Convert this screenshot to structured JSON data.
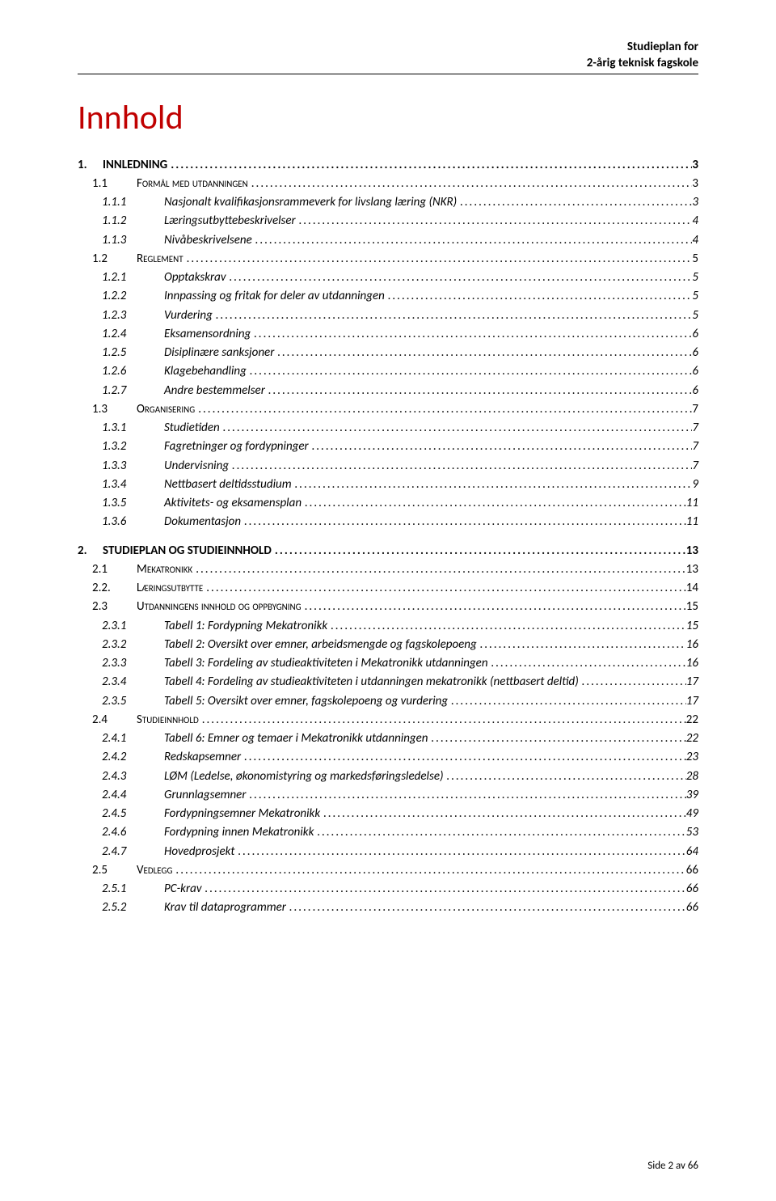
{
  "header": {
    "line1": "Studieplan for",
    "line2": "2-årig teknisk fagskole"
  },
  "title": "Innhold",
  "footer": "Side 2 av 66",
  "colors": {
    "title": "#c00000",
    "text": "#000000",
    "background": "#ffffff"
  },
  "toc": [
    {
      "level": 1,
      "num": "1.",
      "label": "INNLEDNING",
      "page": "3"
    },
    {
      "level": 2,
      "num": "1.1",
      "label": "Formål med utdanningen",
      "page": "3",
      "smallcaps": true
    },
    {
      "level": 3,
      "num": "1.1.1",
      "label": "Nasjonalt kvalifikasjonsrammeverk for livslang læring (NKR)",
      "page": "3"
    },
    {
      "level": 3,
      "num": "1.1.2",
      "label": "Læringsutbyttebeskrivelser",
      "page": "4"
    },
    {
      "level": 3,
      "num": "1.1.3",
      "label": "Nivåbeskrivelsene",
      "page": "4"
    },
    {
      "level": 2,
      "num": "1.2",
      "label": "Reglement",
      "page": "5",
      "smallcaps": true
    },
    {
      "level": 3,
      "num": "1.2.1",
      "label": "Opptakskrav",
      "page": "5"
    },
    {
      "level": 3,
      "num": "1.2.2",
      "label": "Innpassing og fritak for deler av utdanningen",
      "page": "5"
    },
    {
      "level": 3,
      "num": "1.2.3",
      "label": "Vurdering",
      "page": "5"
    },
    {
      "level": 3,
      "num": "1.2.4",
      "label": "Eksamensordning",
      "page": "6"
    },
    {
      "level": 3,
      "num": "1.2.5",
      "label": "Disiplinære sanksjoner",
      "page": "6"
    },
    {
      "level": 3,
      "num": "1.2.6",
      "label": "Klagebehandling",
      "page": "6"
    },
    {
      "level": 3,
      "num": "1.2.7",
      "label": "Andre bestemmelser",
      "page": "6"
    },
    {
      "level": 2,
      "num": "1.3",
      "label": "Organisering",
      "page": "7",
      "smallcaps": true
    },
    {
      "level": 3,
      "num": "1.3.1",
      "label": "Studietiden",
      "page": "7"
    },
    {
      "level": 3,
      "num": "1.3.2",
      "label": "Fagretninger og fordypninger",
      "page": "7"
    },
    {
      "level": 3,
      "num": "1.3.3",
      "label": "Undervisning",
      "page": "7"
    },
    {
      "level": 3,
      "num": "1.3.4",
      "label": "Nettbasert deltidsstudium",
      "page": "9"
    },
    {
      "level": 3,
      "num": "1.3.5",
      "label": "Aktivitets- og eksamensplan",
      "page": "11"
    },
    {
      "level": 3,
      "num": "1.3.6",
      "label": "Dokumentasjon",
      "page": "11"
    },
    {
      "level": 0,
      "spacer": true
    },
    {
      "level": 1,
      "num": "2.",
      "label": "STUDIEPLAN OG STUDIEINNHOLD",
      "page": "13"
    },
    {
      "level": 2,
      "num": "2.1",
      "label": "Mekatronikk",
      "page": "13",
      "smallcaps": true
    },
    {
      "level": 2,
      "num": "2.2.",
      "label": "Læringsutbytte",
      "page": "14",
      "smallcaps": true
    },
    {
      "level": 2,
      "num": "2.3",
      "label": "Utdanningens innhold og oppbygning",
      "page": "15",
      "smallcaps": true
    },
    {
      "level": 3,
      "num": "2.3.1",
      "label": "Tabell 1: Fordypning Mekatronikk",
      "page": "15"
    },
    {
      "level": 3,
      "num": "2.3.2",
      "label": "Tabell 2: Oversikt over emner, arbeidsmengde og fagskolepoeng",
      "page": "16"
    },
    {
      "level": 3,
      "num": "2.3.3",
      "label": "Tabell 3: Fordeling av studieaktiviteten i Mekatronikk utdanningen",
      "page": "16"
    },
    {
      "level": 3,
      "num": "2.3.4",
      "label": "Tabell 4: Fordeling av studieaktiviteten i utdanningen mekatronikk (nettbasert deltid)",
      "page": "17"
    },
    {
      "level": 3,
      "num": "2.3.5",
      "label": "Tabell 5: Oversikt over emner, fagskolepoeng og vurdering",
      "page": "17"
    },
    {
      "level": 2,
      "num": "2.4",
      "label": "Studieinnhold",
      "page": "22",
      "smallcaps": true
    },
    {
      "level": 3,
      "num": "2.4.1",
      "label": "Tabell 6: Emner og temaer i Mekatronikk utdanningen",
      "page": "22"
    },
    {
      "level": 3,
      "num": "2.4.2",
      "label": "Redskapsemner",
      "page": "23"
    },
    {
      "level": 3,
      "num": "2.4.3",
      "label": "LØM (Ledelse, økonomistyring og markedsføringsledelse)",
      "page": "28"
    },
    {
      "level": 3,
      "num": "2.4.4",
      "label": "Grunnlagsemner",
      "page": "39"
    },
    {
      "level": 3,
      "num": "2.4.5",
      "label": "Fordypningsemner Mekatronikk",
      "page": "49"
    },
    {
      "level": 3,
      "num": "2.4.6",
      "label": "Fordypning innen Mekatronikk",
      "page": "53"
    },
    {
      "level": 3,
      "num": "2.4.7",
      "label": "Hovedprosjekt",
      "page": "64"
    },
    {
      "level": 2,
      "num": "2.5",
      "label": "Vedlegg",
      "page": "66",
      "smallcaps": true
    },
    {
      "level": 3,
      "num": "2.5.1",
      "label": "PC-krav",
      "page": "66"
    },
    {
      "level": 3,
      "num": "2.5.2",
      "label": "Krav til dataprogrammer",
      "page": "66"
    }
  ]
}
